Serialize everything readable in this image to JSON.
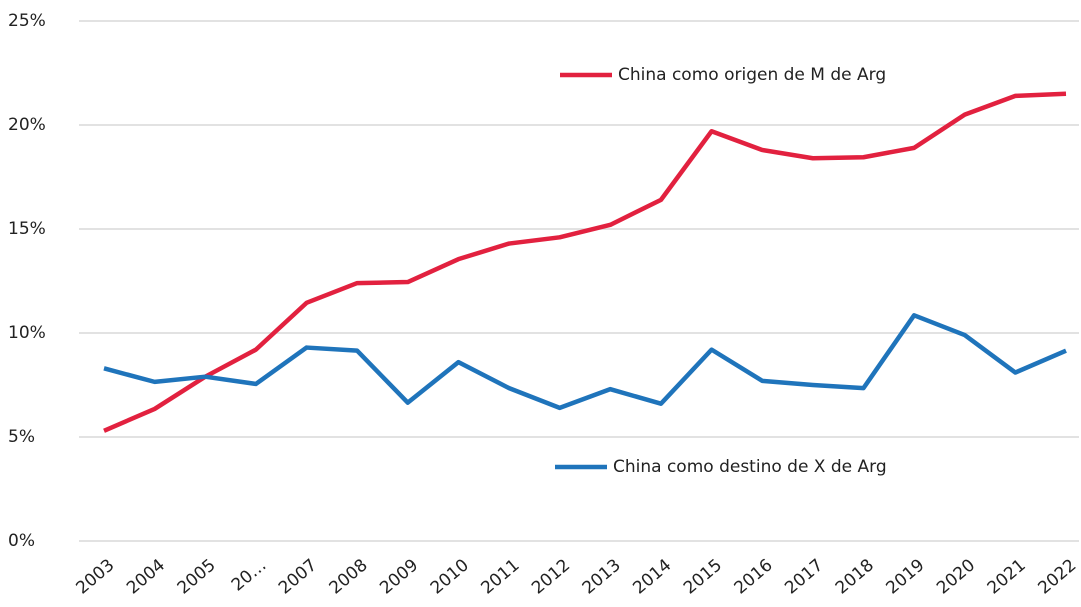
{
  "chart_data": {
    "type": "line",
    "categories": [
      "2003",
      "2004",
      "2005",
      "20…",
      "2007",
      "2008",
      "2009",
      "2010",
      "2011",
      "2012",
      "2013",
      "2014",
      "2015",
      "2016",
      "2017",
      "2018",
      "2019",
      "2020",
      "2021",
      "2022"
    ],
    "series": [
      {
        "name": "China como origen de M de Arg",
        "color": "#e2213f",
        "values": [
          5.3,
          6.35,
          7.9,
          9.2,
          11.45,
          12.4,
          12.45,
          13.55,
          14.3,
          14.6,
          15.2,
          16.4,
          19.7,
          18.8,
          18.4,
          18.45,
          18.9,
          20.5,
          21.4,
          21.5
        ]
      },
      {
        "name": "China como destino de X de Arg",
        "color": "#1f74bb",
        "values": [
          8.3,
          7.65,
          7.9,
          7.55,
          9.3,
          9.15,
          6.65,
          8.6,
          7.35,
          6.4,
          7.3,
          6.6,
          9.2,
          7.7,
          7.5,
          7.35,
          10.85,
          9.9,
          8.1,
          9.15
        ]
      }
    ],
    "ylim": [
      0,
      25
    ],
    "yticks": [
      {
        "value": 0,
        "label": "0%"
      },
      {
        "value": 5,
        "label": "5%"
      },
      {
        "value": 10,
        "label": "10%"
      },
      {
        "value": 15,
        "label": "15%"
      },
      {
        "value": 20,
        "label": "20%"
      },
      {
        "value": 25,
        "label": "25%"
      }
    ],
    "grid": true
  }
}
